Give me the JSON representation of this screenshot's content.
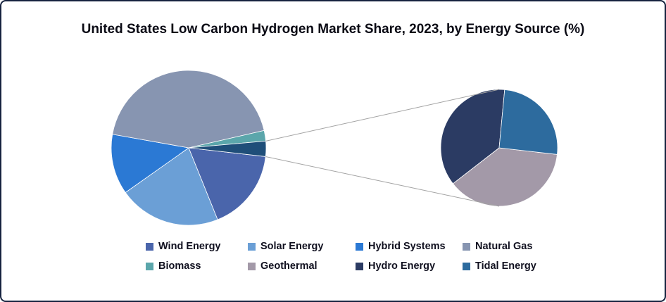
{
  "title": "United States Low Carbon Hydrogen Market Share, 2023, by Energy Source (%)",
  "chart_data": {
    "type": "pie",
    "variant": "pie-of-pie",
    "title": "United States Low Carbon Hydrogen Market Share, 2023, by Energy Source (%)",
    "unit": "%",
    "legend_position": "bottom",
    "rotation_deg": 96.5,
    "main_pie": {
      "slices": [
        {
          "label": "Wind Energy",
          "value": 17.1,
          "color": "#4A65AB"
        },
        {
          "label": "Solar Energy",
          "value": 21.3,
          "color": "#6B9FD6"
        },
        {
          "label": "Hybrid Systems",
          "value": 12.6,
          "color": "#2B79D4"
        },
        {
          "label": "Natural Gas",
          "value": 43.6,
          "color": "#8795B1"
        },
        {
          "label": "Biomass",
          "value": 2.2,
          "color": "#5BA6AB"
        },
        {
          "label": "Other (Geothermal + Hydro Energy + Tidal Energy)",
          "value": 3.2,
          "color": "#1F4E79",
          "is_other_group": true
        }
      ]
    },
    "secondary_pie": {
      "description": "Breakdown of the small combined slice",
      "rotation_deg": 96.5,
      "slices": [
        {
          "label": "Geothermal",
          "value": 37.7,
          "value_pct_of_total": 1.2,
          "color": "#A399A8"
        },
        {
          "label": "Hydro Energy",
          "value": 37.0,
          "value_pct_of_total": 1.2,
          "color": "#2B3B63"
        },
        {
          "label": "Tidal Energy",
          "value": 25.3,
          "value_pct_of_total": 0.8,
          "color": "#2D6B9E"
        }
      ]
    }
  },
  "legend": {
    "items": [
      {
        "label": "Wind Energy",
        "color": "#4A65AB"
      },
      {
        "label": "Solar Energy",
        "color": "#6B9FD6"
      },
      {
        "label": "Hybrid Systems",
        "color": "#2B79D4"
      },
      {
        "label": "Natural Gas",
        "color": "#8795B1"
      },
      {
        "label": "Biomass",
        "color": "#5BA6AB"
      },
      {
        "label": "Geothermal",
        "color": "#A399A8"
      },
      {
        "label": "Hydro Energy",
        "color": "#2B3B63"
      },
      {
        "label": "Tidal Energy",
        "color": "#2D6B9E"
      }
    ]
  },
  "connector": {
    "color": "#A3A3A3"
  }
}
